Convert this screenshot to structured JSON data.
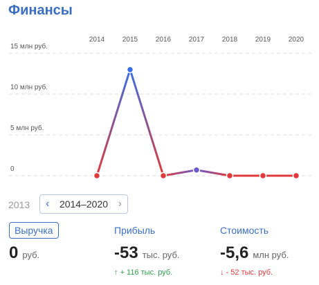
{
  "header": {
    "title": "Финансы"
  },
  "chart_data": {
    "type": "line",
    "categories": [
      "2014",
      "2015",
      "2016",
      "2017",
      "2018",
      "2019",
      "2020"
    ],
    "series": [
      {
        "values": [
          0,
          13,
          0,
          0.7,
          0,
          0,
          0
        ],
        "colors": [
          "#e03a3a",
          "#3a6fe8",
          "#e03a3a",
          "#6a5bd0",
          "#e03a3a",
          "#e03a3a",
          "#e03a3a"
        ]
      }
    ],
    "ylim": [
      0,
      15
    ],
    "yticks": [
      0,
      {
        "value": 5,
        "label": "5 млн руб."
      },
      {
        "value": 10,
        "label": "10 млн руб."
      },
      {
        "value": 15,
        "label": "15 млн руб."
      }
    ],
    "grid": true
  },
  "period": {
    "prev": "2013",
    "range": "2014–2020"
  },
  "metrics": [
    {
      "label": "Выручка",
      "value": "0",
      "unit": "руб."
    },
    {
      "label": "Прибыль",
      "value": "-53",
      "unit": "тыс. руб.",
      "change": "+ 116 тыс. руб.",
      "direction": "up"
    },
    {
      "label": "Стоимость",
      "value": "-5,6",
      "unit": "млн руб.",
      "change": "- 52 тыс. руб.",
      "direction": "down"
    }
  ]
}
